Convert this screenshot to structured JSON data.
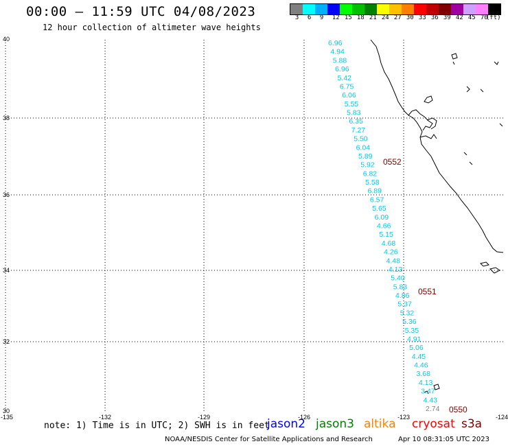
{
  "header": {
    "title": "00:00 – 11:59 UTC 04/08/2023",
    "subtitle": "12 hour collection of altimeter wave heights"
  },
  "color_scale": {
    "colors": [
      "#808080",
      "#00ffff",
      "#00b0ff",
      "#0000ff",
      "#00ff00",
      "#00c000",
      "#008000",
      "#ffff00",
      "#ffc000",
      "#ff8000",
      "#ff0000",
      "#c00000",
      "#800000",
      "#a000a0",
      "#d0a0ff",
      "#ff80ff",
      "#000000"
    ],
    "labels": [
      "3",
      "6",
      "9",
      "12",
      "15",
      "18",
      "21",
      "24",
      "27",
      "30",
      "33",
      "36",
      "39",
      "42",
      "45",
      "70",
      "(ft)"
    ]
  },
  "axes": {
    "y_labels": [
      "40",
      "38",
      "36",
      "34",
      "32",
      "30"
    ],
    "x_labels": [
      "-135",
      "-132",
      "-129",
      "-126",
      "-123",
      "-124"
    ]
  },
  "wave_heights": {
    "values": [
      "6.96",
      "4.94",
      "5.88",
      "6.96",
      "5.42",
      "6.75",
      "6.06",
      "5.55",
      "5.83",
      "6.35",
      "7.27",
      "5.50",
      "6.04",
      "5.89",
      "5.92",
      "6.82",
      "5.58",
      "6.89",
      "6.57",
      "5.65",
      "6.09",
      "4.66",
      "5.15",
      "4.68",
      "4.26",
      "4.48",
      "4.13",
      "5.40",
      "5.83",
      "4.86",
      "5.37",
      "5.32",
      "5.36",
      "5.35",
      "4.91",
      "5.06",
      "4.45",
      "4.46",
      "3.68",
      "4.13",
      "3.47",
      "4.43",
      "2.74"
    ],
    "colors": [
      "#00c8e8",
      "#00c8e8",
      "#00c8e8",
      "#00c8e8",
      "#00c8e8",
      "#00c8e8",
      "#00c8e8",
      "#00c8e8",
      "#00c8e8",
      "#00c8e8",
      "#00c8e8",
      "#00c8e8",
      "#00c8e8",
      "#00c8e8",
      "#00c8e8",
      "#00c8e8",
      "#00c8e8",
      "#00c8e8",
      "#00c8e8",
      "#00c8e8",
      "#00c8e8",
      "#00c8e8",
      "#00c8e8",
      "#00c8e8",
      "#00c8e8",
      "#00c8e8",
      "#00c8e8",
      "#00c8e8",
      "#00c8e8",
      "#00c8e8",
      "#00c8e8",
      "#00c8e8",
      "#00c8e8",
      "#00c8e8",
      "#00c8e8",
      "#00c8e8",
      "#00c8e8",
      "#00c8e8",
      "#00c8e8",
      "#00c8e8",
      "#00c8e8",
      "#00c8e8",
      "#808080"
    ]
  },
  "time_labels": [
    "0552",
    "0551",
    "0550"
  ],
  "time_label_color": "#800000",
  "footer": {
    "note": "note: 1) Time is in UTC; 2) SWH is in feet",
    "satellites": [
      {
        "name": "jason2",
        "color": "#0000ff"
      },
      {
        "name": "jason3",
        "color": "#008000"
      },
      {
        "name": "altika",
        "color": "#ff8000"
      },
      {
        "name": "cryosat",
        "color": "#ff0000"
      },
      {
        "name": "s3a",
        "color": "#800000"
      }
    ],
    "credit": "NOAA/NESDIS Center for Satellite Applications and Research",
    "timestamp": "Apr 10 08:31:05 UTC 2023"
  }
}
